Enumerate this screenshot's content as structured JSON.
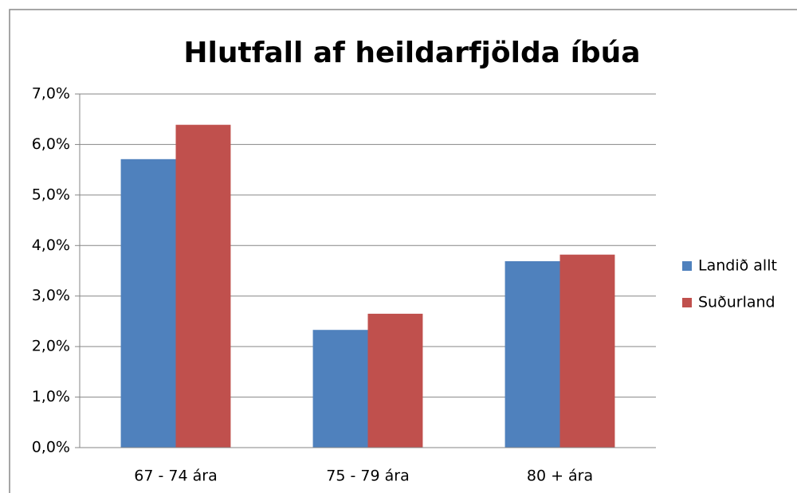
{
  "chart_data": {
    "type": "bar",
    "title": "Hlutfall af heildarfjölda íbúa",
    "categories": [
      "67 - 74 ára",
      "75 - 79 ára",
      "80 + ára"
    ],
    "series": [
      {
        "name": "Landið allt",
        "color": "#4f81bd",
        "values": [
          5.71,
          2.33,
          3.69
        ]
      },
      {
        "name": "Suðurland",
        "color": "#c0504d",
        "values": [
          6.39,
          2.65,
          3.82
        ]
      }
    ],
    "ylim": [
      0,
      7
    ],
    "yticks": [
      {
        "value": 0,
        "label": "0,0%"
      },
      {
        "value": 1,
        "label": "1,0%"
      },
      {
        "value": 2,
        "label": "2,0%"
      },
      {
        "value": 3,
        "label": "3,0%"
      },
      {
        "value": 4,
        "label": "4,0%"
      },
      {
        "value": 5,
        "label": "5,0%"
      },
      {
        "value": 6,
        "label": "6,0%"
      },
      {
        "value": 7,
        "label": "7,0%"
      }
    ],
    "grid": true,
    "legend": "right"
  }
}
